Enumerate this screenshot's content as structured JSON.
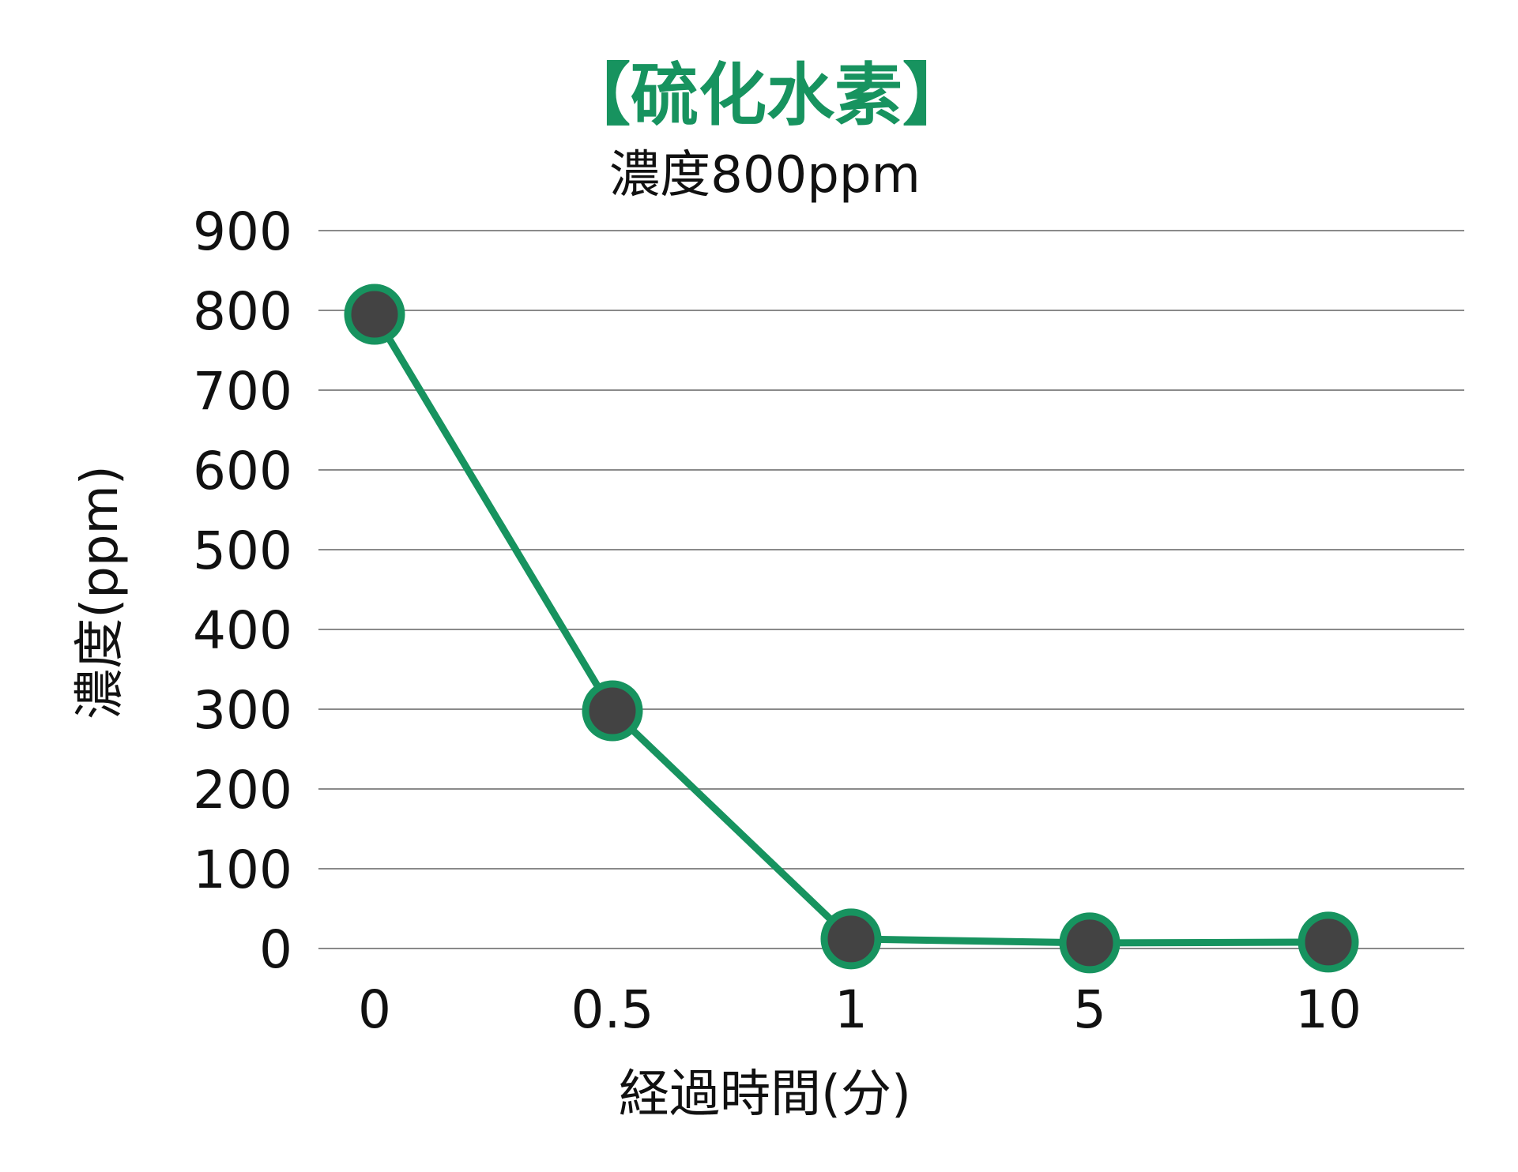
{
  "chart_data": {
    "type": "line",
    "title": "【硫化水素】",
    "subtitle": "濃度800ppm",
    "xlabel": "経過時間(分)",
    "ylabel": "濃度(ppm)",
    "categories": [
      "0",
      "0.5",
      "1",
      "5",
      "10"
    ],
    "series": [
      {
        "values": [
          795,
          298,
          12,
          7,
          8
        ]
      }
    ],
    "ylim": [
      0,
      900
    ],
    "yticks": [
      "0",
      "100",
      "200",
      "300",
      "400",
      "500",
      "600",
      "700",
      "800",
      "900"
    ],
    "grid": true,
    "legend": "none",
    "colors": {
      "title": "#17935f",
      "line": "#17935f",
      "marker_fill": "#434343",
      "marker_stroke": "#17935f",
      "grid": "#8a8a8a"
    }
  }
}
